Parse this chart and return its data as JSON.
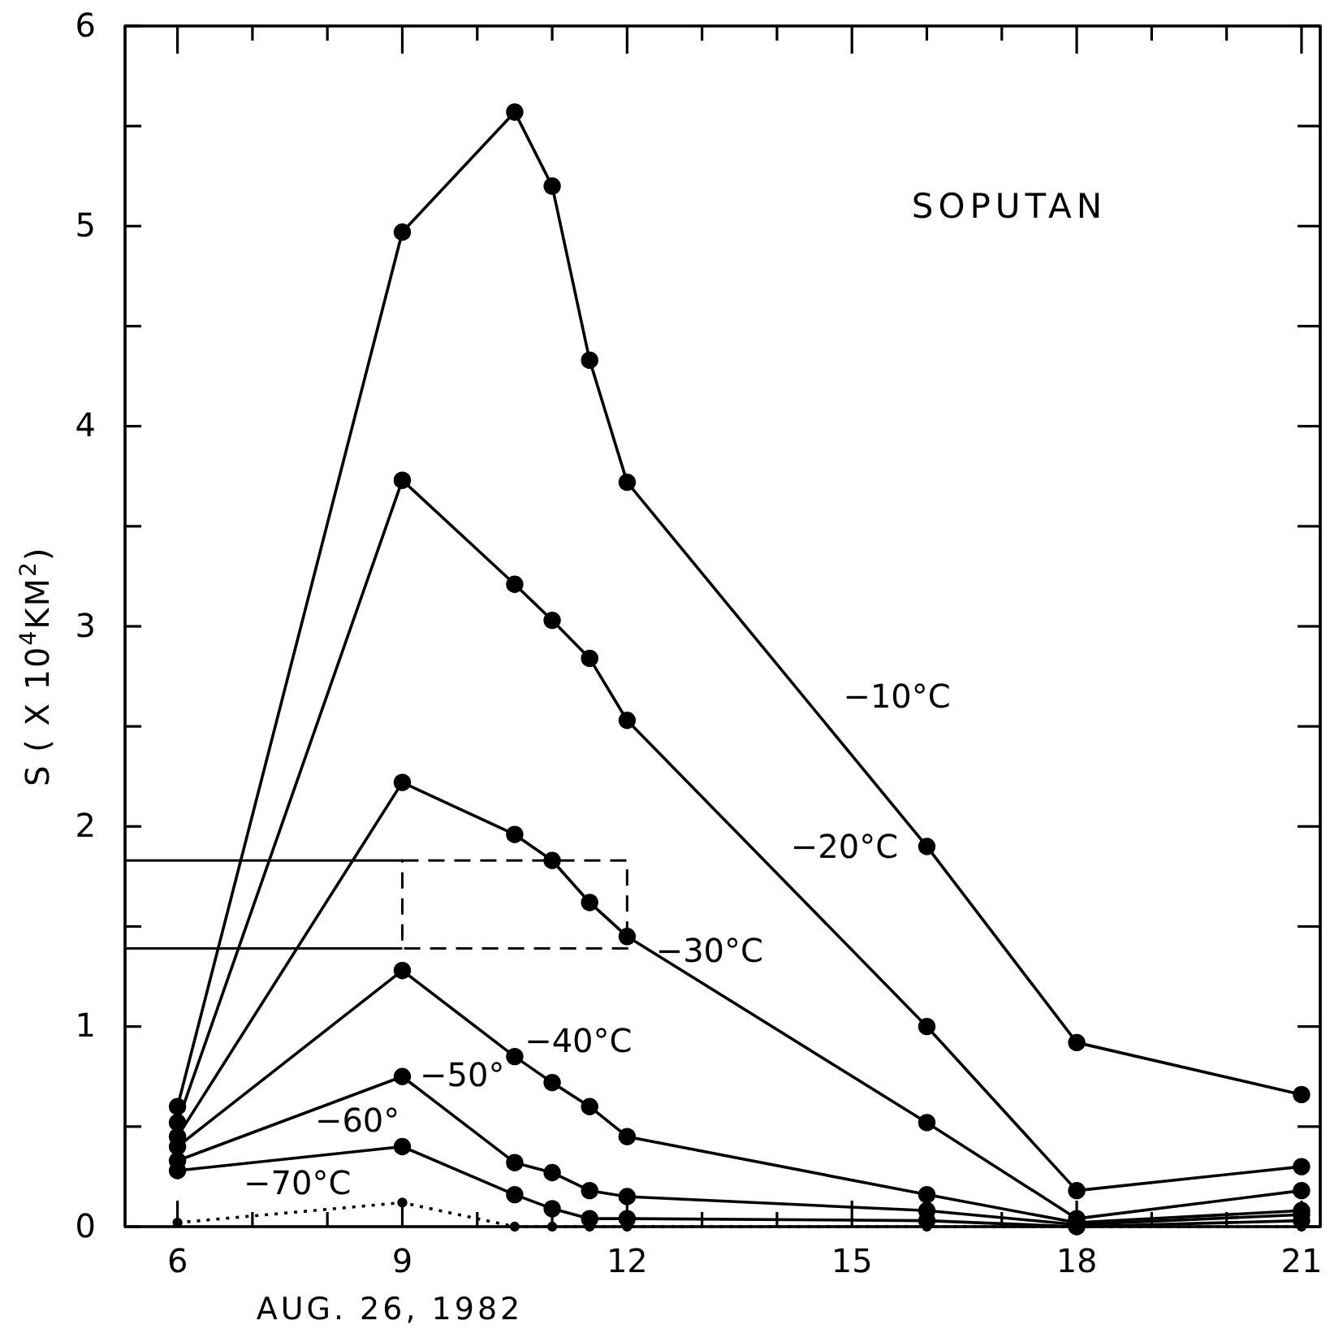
{
  "chart_data": {
    "type": "line",
    "title": "SOPUTAN",
    "xlabel": "AUG. 26, 1982",
    "ylabel": "S ( X 10$^{4}$KM$^{2}$)",
    "x": [
      6,
      9,
      10.5,
      11,
      11.5,
      12,
      16,
      18,
      21
    ],
    "xlim": [
      5.3,
      21.25
    ],
    "xticks": [
      6,
      {
        "value": 7,
        "label": null
      },
      {
        "value": 8,
        "label": null
      },
      9,
      {
        "value": 10,
        "label": null
      },
      {
        "value": 11,
        "label": null
      },
      12,
      {
        "value": 13,
        "label": null
      },
      {
        "value": 14,
        "label": null
      },
      15,
      {
        "value": 16,
        "label": null
      },
      {
        "value": 17,
        "label": null
      },
      18,
      {
        "value": 19,
        "label": null
      },
      {
        "value": 20,
        "label": null
      },
      21
    ],
    "ylim": [
      0,
      6
    ],
    "yticks": [
      0,
      {
        "value": 0.5,
        "label": null
      },
      1,
      {
        "value": 1.5,
        "label": null
      },
      2,
      {
        "value": 2.5,
        "label": null
      },
      3,
      {
        "value": 3.5,
        "label": null
      },
      4,
      {
        "value": 4.5,
        "label": null
      },
      5,
      {
        "value": 5.5,
        "label": null
      },
      6
    ],
    "marker": "circle",
    "grid": false,
    "series": [
      {
        "name": "−10°C",
        "color": "#000000",
        "values": [
          0.6,
          4.97,
          5.57,
          5.2,
          4.33,
          3.72,
          1.9,
          0.92,
          0.66
        ]
      },
      {
        "name": "−20°C",
        "color": "#000000",
        "values": [
          0.52,
          3.73,
          3.21,
          3.03,
          2.84,
          2.53,
          1.0,
          0.18,
          0.3
        ]
      },
      {
        "name": "−30°C",
        "color": "#000000",
        "values": [
          0.45,
          2.22,
          1.96,
          1.83,
          1.62,
          1.45,
          0.52,
          0.04,
          0.18
        ]
      },
      {
        "name": "−40°C",
        "color": "#000000",
        "values": [
          0.4,
          1.28,
          0.85,
          0.72,
          0.6,
          0.45,
          0.16,
          0.02,
          0.08
        ]
      },
      {
        "name": "−50°",
        "color": "#000000",
        "values": [
          0.33,
          0.75,
          0.32,
          0.27,
          0.18,
          0.15,
          0.08,
          0.01,
          0.06
        ]
      },
      {
        "name": "−60°",
        "color": "#000000",
        "values": [
          0.28,
          0.4,
          0.16,
          0.09,
          0.04,
          0.04,
          0.03,
          0,
          0.03
        ]
      },
      {
        "name": "−70°C",
        "color": "#000000",
        "line_style": "dotted",
        "values": [
          0.02,
          0.12,
          0,
          0,
          0,
          0,
          0,
          0,
          0
        ]
      }
    ],
    "ref_lines": [
      {
        "axis": "y",
        "value": 1.83
      },
      {
        "axis": "y",
        "value": 1.39
      }
    ]
  }
}
